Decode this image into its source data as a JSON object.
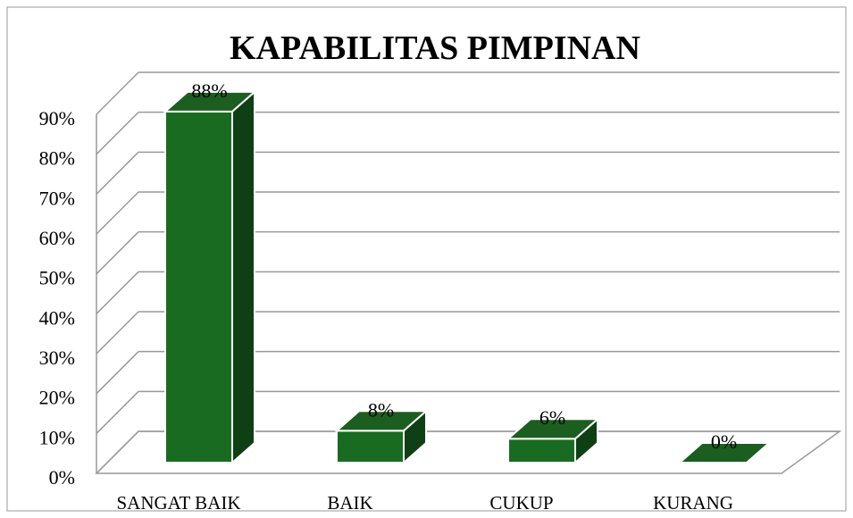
{
  "chart_data": {
    "type": "bar3d",
    "title": "KAPABILITAS PIMPINAN",
    "categories": [
      "SANGAT BAIK",
      "BAIK",
      "CUKUP",
      "KURANG"
    ],
    "values": [
      88,
      8,
      6,
      0
    ],
    "value_labels": [
      "88%",
      "8%",
      "6%",
      "0%"
    ],
    "color": "#1a6b22",
    "ylim": [
      0,
      90
    ],
    "yticks": [
      {
        "value": 0,
        "label": "0%"
      },
      {
        "value": 10,
        "label": "10%"
      },
      {
        "value": 20,
        "label": "20%"
      },
      {
        "value": 30,
        "label": "30%"
      },
      {
        "value": 40,
        "label": "40%"
      },
      {
        "value": 50,
        "label": "50%"
      },
      {
        "value": 60,
        "label": "60%"
      },
      {
        "value": 70,
        "label": "70%"
      },
      {
        "value": 80,
        "label": "80%"
      },
      {
        "value": 90,
        "label": "90%"
      }
    ],
    "grid": true
  }
}
